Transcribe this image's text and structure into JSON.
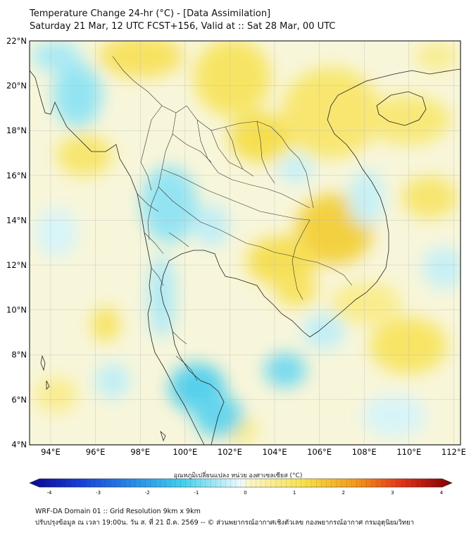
{
  "header": {
    "title_line1": "Temperature Change 24-hr (°C) - [Data Assimilation]",
    "title_line2": "Saturday 21 Mar, 12 UTC FCST+156, Valid at :: Sat 28 Mar, 00 UTC"
  },
  "map": {
    "lat_labels": [
      "22°N",
      "20°N",
      "18°N",
      "16°N",
      "14°N",
      "12°N",
      "10°N",
      "8°N",
      "6°N",
      "4°N"
    ],
    "lon_labels": [
      "94°E",
      "96°E",
      "98°E",
      "100°E",
      "102°E",
      "104°E",
      "106°E",
      "108°E",
      "110°E",
      "112°E"
    ]
  },
  "colorbar": {
    "label": "อุณหภูมิเปลี่ยนแปลง หน่วย องศาเซลเซียส (°C)",
    "ticks": [
      "-4",
      "-3",
      "-2",
      "-1",
      "0",
      "1",
      "2",
      "3",
      "4"
    ],
    "min": -4,
    "max": 4,
    "colors": [
      "#08088f",
      "#1a3fd6",
      "#2a8ee6",
      "#3fcfee",
      "#eefafd",
      "#fbf6c8",
      "#f8e04a",
      "#f39a1c",
      "#e3331a",
      "#7f0000"
    ]
  },
  "footer": {
    "line1": "WRF-DA Domain 01 :: Grid Resolution 9km x 9km",
    "line2": "ปรับปรุงข้อมูล ณ เวลา 19:00น. วัน ส. ที่ 21 มี.ค. 2569 -- © ส่วนพยากรณ์อากาศเชิงตัวเลข กองพยากรณ์อากาศ กรมอุตุนิยมวิทยา"
  }
}
